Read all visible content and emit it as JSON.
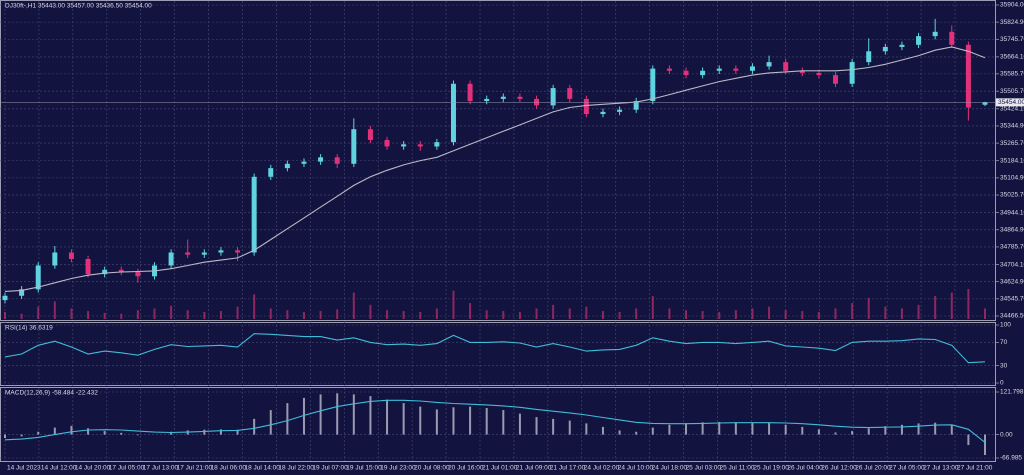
{
  "chart_data": [
    {
      "type": "candlestick",
      "title": "DJ30ft-,H1  35443.00 35457.00 35436.50 35454.00",
      "price_tag": "35454.00",
      "colors": {
        "up": "#5fd3df",
        "down": "#e2307a",
        "ma": "#b9b9c8",
        "volume": "#c2306e"
      },
      "open": [
        34540,
        34560,
        34590,
        34700,
        34760,
        34730,
        34660,
        34680,
        34670,
        34650,
        34700,
        34760,
        34750,
        34760,
        34770,
        34760,
        35110,
        35150,
        35170,
        35180,
        35200,
        35170,
        35330,
        35280,
        35250,
        35260,
        35250,
        35270,
        35540,
        35460,
        35470,
        35480,
        35470,
        35440,
        35520,
        35470,
        35400,
        35410,
        35420,
        35460,
        35610,
        35600,
        35580,
        35600,
        35610,
        35600,
        35620,
        35640,
        35600,
        35590,
        35580,
        35540,
        35640,
        35690,
        35710,
        35720,
        35760,
        35780,
        35720,
        35443
      ],
      "high": [
        34575,
        34605,
        34715,
        34790,
        34775,
        34745,
        34695,
        34695,
        34685,
        34715,
        34775,
        34820,
        34775,
        34785,
        34785,
        35125,
        35165,
        35185,
        35195,
        35215,
        35215,
        35380,
        35345,
        35295,
        35275,
        35275,
        35285,
        35555,
        35555,
        35485,
        35495,
        35495,
        35485,
        35535,
        35535,
        35485,
        35425,
        35435,
        35475,
        35625,
        35625,
        35615,
        35615,
        35625,
        35625,
        35635,
        35670,
        35655,
        35615,
        35605,
        35595,
        35655,
        35750,
        35725,
        35735,
        35775,
        35840,
        35810,
        35735,
        35457
      ],
      "low": [
        34525,
        34545,
        34575,
        34685,
        34715,
        34645,
        34645,
        34655,
        34620,
        34635,
        34685,
        34735,
        34735,
        34745,
        34720,
        34745,
        35095,
        35135,
        35155,
        35165,
        35150,
        35155,
        35265,
        35235,
        35235,
        35230,
        35235,
        35255,
        35445,
        35445,
        35455,
        35455,
        35425,
        35425,
        35455,
        35385,
        35385,
        35395,
        35405,
        35445,
        35585,
        35565,
        35565,
        35585,
        35585,
        35585,
        35605,
        35585,
        35575,
        35565,
        35525,
        35525,
        35625,
        35675,
        35695,
        35705,
        35745,
        35705,
        35370,
        35436.5
      ],
      "close": [
        34560,
        34590,
        34700,
        34760,
        34730,
        34660,
        34680,
        34670,
        34650,
        34700,
        34760,
        34750,
        34760,
        34770,
        34760,
        35110,
        35150,
        35170,
        35180,
        35200,
        35170,
        35330,
        35280,
        35250,
        35260,
        35250,
        35270,
        35540,
        35460,
        35470,
        35480,
        35470,
        35440,
        35520,
        35470,
        35400,
        35410,
        35420,
        35460,
        35610,
        35600,
        35580,
        35600,
        35610,
        35600,
        35620,
        35640,
        35600,
        35590,
        35580,
        35540,
        35640,
        35690,
        35710,
        35720,
        35760,
        35780,
        35720,
        35430,
        35454
      ],
      "ma": [
        34580,
        34585,
        34600,
        34620,
        34640,
        34655,
        34665,
        34670,
        34672,
        34675,
        34685,
        34700,
        34715,
        34725,
        34735,
        34770,
        34820,
        34870,
        34920,
        34970,
        35020,
        35070,
        35110,
        35140,
        35165,
        35185,
        35200,
        35230,
        35260,
        35290,
        35320,
        35350,
        35380,
        35410,
        35430,
        35440,
        35445,
        35450,
        35455,
        35470,
        35490,
        35510,
        35530,
        35550,
        35565,
        35580,
        35590,
        35595,
        35600,
        35600,
        35600,
        35605,
        35615,
        35630,
        35650,
        35670,
        35695,
        35710,
        35690,
        35660
      ],
      "volume": [
        8,
        6,
        14,
        20,
        12,
        9,
        7,
        6,
        10,
        12,
        15,
        10,
        8,
        9,
        14,
        28,
        12,
        10,
        8,
        9,
        11,
        30,
        16,
        10,
        9,
        8,
        12,
        32,
        18,
        10,
        9,
        8,
        12,
        16,
        12,
        14,
        9,
        8,
        12,
        26,
        12,
        10,
        9,
        8,
        10,
        12,
        14,
        10,
        9,
        8,
        12,
        18,
        24,
        14,
        12,
        16,
        26,
        30,
        34,
        12
      ],
      "ylim": [
        34466.5,
        35904
      ],
      "yticks": [
        {
          "value": 35904,
          "label": "35904.00"
        },
        {
          "value": 35824.9,
          "label": "35824.90"
        },
        {
          "value": 35745.7,
          "label": "35745.70"
        },
        {
          "value": 35664.1,
          "label": "35664.10"
        },
        {
          "value": 35585.7,
          "label": "35585.70"
        },
        {
          "value": 35505.7,
          "label": "35505.70"
        },
        {
          "value": 35424.1,
          "label": "35424.10"
        },
        {
          "value": 35344.9,
          "label": "35344.90"
        },
        {
          "value": 35265.7,
          "label": "35265.70"
        },
        {
          "value": 35184.1,
          "label": "35184.10"
        },
        {
          "value": 35104.9,
          "label": "35104.90"
        },
        {
          "value": 35025.7,
          "label": "35025.70"
        },
        {
          "value": 34944.1,
          "label": "34944.10"
        },
        {
          "value": 34864.9,
          "label": "34864.90"
        },
        {
          "value": 34785.7,
          "label": "34785.70"
        },
        {
          "value": 34704.1,
          "label": "34704.10"
        },
        {
          "value": 34624.9,
          "label": "34624.90"
        },
        {
          "value": 34545.7,
          "label": "34545.70"
        },
        {
          "value": 34466.5,
          "label": "34466.50"
        }
      ],
      "x_labels": [
        "14 Jul 2023",
        "14 Jul 12:00",
        "14 Jul 20:00",
        "17 Jul 05:00",
        "17 Jul 13:00",
        "17 Jul 21:00",
        "18 Jul 06:00",
        "18 Jul 14:00",
        "18 Jul 22:00",
        "19 Jul 07:00",
        "19 Jul 15:00",
        "19 Jul 23:00",
        "20 Jul 08:00",
        "20 Jul 16:00",
        "21 Jul 01:00",
        "21 Jul 09:00",
        "21 Jul 17:00",
        "24 Jul 02:00",
        "24 Jul 10:00",
        "24 Jul 18:00",
        "25 Jul 03:00",
        "25 Jul 11:00",
        "25 Jul 19:00",
        "26 Jul 04:00",
        "26 Jul 12:00",
        "26 Jul 20:00",
        "27 Jul 05:00",
        "27 Jul 13:00",
        "27 Jul 21:00"
      ],
      "grid": true
    },
    {
      "type": "line",
      "title": "RSI(14) 36.6319",
      "color": "#3fbcd8",
      "values": [
        45,
        50,
        65,
        72,
        62,
        50,
        55,
        52,
        48,
        58,
        66,
        63,
        64,
        65,
        62,
        85,
        84,
        82,
        80,
        80,
        74,
        78,
        70,
        66,
        67,
        65,
        68,
        82,
        70,
        70,
        71,
        69,
        62,
        68,
        62,
        55,
        57,
        58,
        65,
        78,
        72,
        68,
        70,
        70,
        68,
        70,
        72,
        64,
        62,
        60,
        56,
        70,
        72,
        72,
        73,
        76,
        75,
        65,
        35,
        36.6319
      ],
      "ylim": [
        0,
        100
      ],
      "yticks": [
        100,
        70,
        30,
        0
      ],
      "grid": true
    },
    {
      "type": "macd",
      "title": "MACD(12,26,9) -58.484 -22.432",
      "colors": {
        "histogram": "#c8c8d8",
        "signal": "#3fbcd8"
      },
      "histogram": [
        -10,
        -5,
        8,
        20,
        25,
        18,
        10,
        5,
        -2,
        0,
        8,
        12,
        14,
        15,
        14,
        45,
        70,
        90,
        105,
        115,
        118,
        115,
        110,
        100,
        90,
        80,
        72,
        78,
        80,
        76,
        70,
        60,
        50,
        45,
        40,
        32,
        22,
        12,
        8,
        20,
        28,
        32,
        35,
        36,
        35,
        34,
        33,
        28,
        22,
        15,
        6,
        10,
        18,
        24,
        28,
        32,
        34,
        28,
        -30,
        -58.484
      ],
      "signal": [
        -15,
        -13,
        -8,
        0,
        8,
        13,
        14,
        13,
        10,
        7,
        6,
        7,
        9,
        11,
        12,
        18,
        28,
        40,
        55,
        68,
        80,
        88,
        95,
        98,
        98,
        96,
        92,
        89,
        87,
        85,
        82,
        78,
        72,
        67,
        62,
        56,
        49,
        42,
        35,
        32,
        31,
        31,
        32,
        33,
        34,
        34,
        34,
        33,
        31,
        28,
        24,
        21,
        20,
        21,
        22,
        24,
        27,
        28,
        15,
        -22.432
      ],
      "ylim": [
        -66.985,
        121.798
      ],
      "yticks": [
        121.798,
        {
          "value": 0,
          "label": "0.00"
        },
        -66.985
      ],
      "grid": true
    }
  ]
}
